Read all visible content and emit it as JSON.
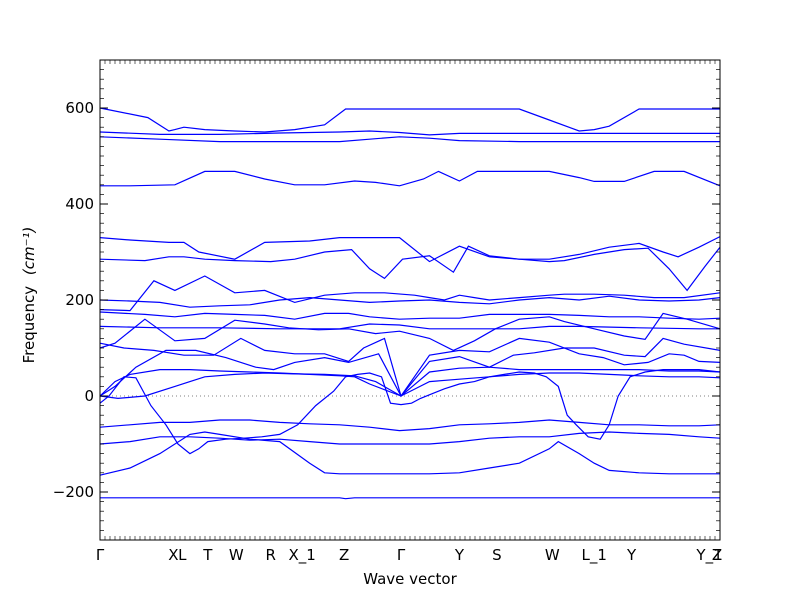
{
  "chart_data": {
    "type": "line",
    "title": "",
    "xlabel": "Wave vector",
    "ylabel": "Frequency",
    "ylabel_unit": "(cm⁻¹)",
    "ylim": [
      -300,
      700
    ],
    "xlim": [
      0,
      20.7
    ],
    "yticks": [
      600,
      400,
      200,
      0,
      -200
    ],
    "ytick_labels": [
      "600",
      "400",
      "200",
      "0",
      "−200"
    ],
    "xticks": [
      {
        "label": "Γ",
        "x": 0
      },
      {
        "label": "X",
        "x": 2.45
      },
      {
        "label": "L",
        "x": 2.75
      },
      {
        "label": "T",
        "x": 3.6
      },
      {
        "label": "W",
        "x": 4.55
      },
      {
        "label": "R",
        "x": 5.7
      },
      {
        "label": "X_1",
        "x": 6.75
      },
      {
        "label": "Z",
        "x": 8.15
      },
      {
        "label": "Γ",
        "x": 10.05
      },
      {
        "label": "Y",
        "x": 12.0
      },
      {
        "label": "S",
        "x": 13.25
      },
      {
        "label": "W",
        "x": 15.1
      },
      {
        "label": "L_1",
        "x": 16.5
      },
      {
        "label": "Y",
        "x": 17.75
      },
      {
        "label": "Y_1",
        "x": 20.35
      },
      {
        "label": "Z",
        "x": 20.6
      }
    ],
    "zero_line": true,
    "series": [
      {
        "x": [
          0,
          1.6,
          2.3,
          2.5,
          2.8,
          3.5,
          4.5,
          5.5,
          6.5,
          7.5,
          8.2,
          9,
          10,
          11,
          12,
          13,
          14,
          15,
          16,
          16.5,
          17,
          18,
          19,
          20,
          20.7
        ],
        "y": [
          600,
          580,
          552,
          555,
          560,
          555,
          552,
          550,
          555,
          565,
          598,
          598,
          598,
          598,
          598,
          598,
          598,
          575,
          552,
          555,
          562,
          598,
          598,
          598,
          598
        ]
      },
      {
        "x": [
          0,
          2,
          4,
          6,
          8,
          9,
          10,
          11,
          12,
          14,
          16,
          18,
          20,
          20.7
        ],
        "y": [
          550,
          545,
          545,
          548,
          550,
          552,
          549,
          544,
          547,
          547,
          547,
          547,
          547,
          547
        ]
      },
      {
        "x": [
          0,
          2,
          4,
          6,
          8,
          9,
          10,
          11,
          12,
          14,
          16,
          18,
          20,
          20.7
        ],
        "y": [
          540,
          535,
          530,
          530,
          530,
          535,
          540,
          537,
          532,
          530,
          530,
          530,
          530,
          530
        ]
      },
      {
        "x": [
          0,
          1,
          2.5,
          3.5,
          4.5,
          5.5,
          6.5,
          7.5,
          8.5,
          9.2,
          10,
          10.8,
          11.3,
          12,
          12.6,
          13.2,
          14,
          15,
          16,
          16.5,
          17.5,
          18.5,
          19.5,
          20.7
        ],
        "y": [
          438,
          438,
          440,
          468,
          468,
          452,
          440,
          440,
          448,
          445,
          438,
          452,
          468,
          448,
          468,
          468,
          468,
          468,
          455,
          447,
          447,
          468,
          468,
          438
        ]
      },
      {
        "x": [
          0,
          1,
          2.3,
          2.8,
          3.3,
          4.5,
          5.5,
          7,
          8,
          9,
          10,
          11,
          12,
          13,
          14,
          15,
          16,
          17,
          18,
          18.8,
          19.3,
          20,
          20.7
        ],
        "y": [
          330,
          325,
          320,
          320,
          300,
          285,
          320,
          323,
          330,
          330,
          330,
          280,
          312,
          290,
          285,
          285,
          295,
          310,
          318,
          300,
          290,
          310,
          332
        ]
      },
      {
        "x": [
          0,
          1.5,
          2.3,
          2.8,
          3.5,
          4.5,
          5.7,
          6.5,
          7.5,
          8.4,
          9,
          9.5,
          10.1,
          11,
          11.8,
          12.3,
          13,
          14,
          15,
          15.5,
          16.5,
          17.5,
          18.3,
          19,
          19.6,
          20.2,
          20.7
        ],
        "y": [
          285,
          282,
          290,
          290,
          285,
          282,
          280,
          285,
          300,
          305,
          265,
          245,
          285,
          292,
          258,
          312,
          292,
          285,
          280,
          282,
          295,
          305,
          308,
          265,
          220,
          270,
          310
        ]
      },
      {
        "x": [
          0,
          1,
          1.8,
          2.5,
          3.5,
          4.5,
          5.5,
          6.5,
          7.5,
          8.5,
          9.5,
          10.5,
          11,
          11.5,
          12,
          12.5,
          13,
          14,
          15,
          15.5,
          16.5,
          17.5,
          18.5,
          19.5,
          20.7
        ],
        "y": [
          180,
          178,
          240,
          220,
          250,
          215,
          220,
          195,
          210,
          215,
          215,
          210,
          205,
          200,
          210,
          205,
          200,
          205,
          210,
          212,
          212,
          210,
          205,
          205,
          215
        ]
      },
      {
        "x": [
          0,
          1,
          2,
          3,
          4,
          5,
          6,
          7,
          8,
          9,
          10,
          11,
          12,
          13,
          14,
          15,
          16,
          17,
          18,
          19,
          20,
          20.7
        ],
        "y": [
          200,
          198,
          195,
          185,
          188,
          190,
          200,
          205,
          200,
          195,
          198,
          200,
          195,
          192,
          200,
          205,
          200,
          208,
          200,
          198,
          200,
          205
        ]
      },
      {
        "x": [
          0,
          1.5,
          2.5,
          3.5,
          4.5,
          5.5,
          6.5,
          7.5,
          8.3,
          9,
          10,
          11,
          12,
          13,
          14,
          15,
          16,
          17,
          18,
          19,
          20,
          20.7
        ],
        "y": [
          175,
          170,
          165,
          172,
          170,
          168,
          160,
          172,
          172,
          165,
          160,
          162,
          162,
          170,
          170,
          170,
          168,
          165,
          165,
          162,
          160,
          162
        ]
      },
      {
        "x": [
          0,
          2,
          4,
          6,
          8,
          9,
          10,
          11,
          12,
          14,
          15,
          16,
          18,
          20,
          20.7
        ],
        "y": [
          145,
          142,
          142,
          140,
          140,
          150,
          148,
          140,
          140,
          140,
          145,
          145,
          142,
          140,
          140
        ]
      },
      {
        "x": [
          0,
          0.5,
          1.5,
          2.5,
          3.5,
          4.5,
          5.5,
          6.3,
          7.3,
          8.3,
          9.2,
          10,
          11,
          11.8,
          12.5,
          13.2,
          14,
          15,
          15.5,
          16.5,
          17.5,
          18.2,
          18.8,
          19.6,
          20.7
        ],
        "y": [
          100,
          110,
          160,
          115,
          120,
          158,
          150,
          142,
          138,
          140,
          130,
          135,
          120,
          95,
          115,
          140,
          160,
          165,
          155,
          140,
          125,
          118,
          172,
          160,
          140
        ]
      },
      {
        "x": [
          0,
          0.8,
          1.8,
          2.8,
          3.8,
          4.7,
          5.5,
          6.5,
          7.5,
          8.3,
          8.8,
          9.5,
          10.05,
          11,
          12,
          13,
          13.8,
          14.5,
          15.5,
          16.5,
          17.5,
          18.2,
          18.8,
          19.5,
          20.7
        ],
        "y": [
          110,
          100,
          95,
          85,
          85,
          120,
          95,
          88,
          88,
          72,
          100,
          120,
          0,
          72,
          82,
          60,
          85,
          90,
          100,
          100,
          85,
          82,
          120,
          108,
          95
        ]
      },
      {
        "x": [
          0,
          0.5,
          1.2,
          2.2,
          3.2,
          4.2,
          5.2,
          5.8,
          6.5,
          7.5,
          8.3,
          9.3,
          10.05,
          11,
          12,
          13,
          14,
          15,
          16,
          16.8,
          17.5,
          18.3,
          19,
          19.5,
          20,
          20.7
        ],
        "y": [
          0,
          20,
          60,
          95,
          95,
          80,
          60,
          55,
          70,
          80,
          70,
          88,
          0,
          85,
          95,
          92,
          120,
          112,
          88,
          80,
          65,
          70,
          88,
          85,
          72,
          70
        ]
      },
      {
        "x": [
          0,
          0.5,
          1,
          2,
          3,
          4,
          5,
          6,
          7,
          8,
          8.5,
          9,
          10.05,
          11,
          12,
          13,
          14,
          15,
          16,
          17,
          18,
          19,
          20,
          20.7
        ],
        "y": [
          0,
          30,
          45,
          55,
          55,
          52,
          50,
          48,
          45,
          42,
          40,
          25,
          0,
          50,
          58,
          60,
          55,
          55,
          55,
          55,
          55,
          52,
          52,
          50
        ]
      },
      {
        "x": [
          0,
          0.6,
          1.5,
          2.5,
          3.5,
          4.5,
          5.5,
          6.5,
          7.5,
          8.5,
          9.2,
          10.05,
          11,
          12,
          13,
          14,
          15,
          16,
          17,
          18,
          19,
          20,
          20.7
        ],
        "y": [
          0,
          -5,
          0,
          20,
          40,
          45,
          48,
          46,
          45,
          42,
          30,
          0,
          30,
          35,
          40,
          45,
          48,
          48,
          45,
          42,
          40,
          40,
          38
        ]
      },
      {
        "x": [
          0,
          0.3,
          0.8,
          1.2,
          1.7,
          2.2,
          2.6,
          3.0,
          3.3,
          3.6,
          4.2,
          4.8,
          5.4,
          6,
          6.6,
          7.2,
          7.8,
          8.2,
          8.6,
          9.0,
          9.4,
          9.7,
          10.05,
          10.4,
          10.7,
          11.1,
          11.5,
          12,
          12.5,
          13,
          13.5,
          14,
          14.5,
          14.9,
          15.3,
          15.6,
          15.9,
          16.3,
          16.7,
          17.0,
          17.3,
          17.7,
          18.2,
          18.8,
          19.4,
          20,
          20.7
        ],
        "y": [
          -15,
          0,
          40,
          38,
          -20,
          -60,
          -100,
          -120,
          -110,
          -95,
          -90,
          -88,
          -85,
          -80,
          -60,
          -20,
          10,
          40,
          45,
          48,
          40,
          -15,
          -18,
          -15,
          -5,
          5,
          15,
          25,
          30,
          40,
          45,
          50,
          48,
          40,
          20,
          -40,
          -60,
          -85,
          -90,
          -60,
          0,
          40,
          50,
          55,
          55,
          55,
          50
        ]
      },
      {
        "x": [
          0,
          1,
          2,
          3,
          3.5,
          4,
          5,
          6,
          7,
          7.5,
          8,
          9,
          10,
          11,
          12,
          13,
          14,
          15,
          15.3,
          16,
          16.5,
          17,
          18,
          19,
          20,
          20.7
        ],
        "y": [
          -165,
          -150,
          -120,
          -80,
          -75,
          -80,
          -90,
          -95,
          -140,
          -160,
          -162,
          -162,
          -162,
          -162,
          -160,
          -150,
          -140,
          -110,
          -95,
          -120,
          -140,
          -155,
          -160,
          -162,
          -162,
          -162
        ]
      },
      {
        "x": [
          0,
          1,
          2,
          3,
          4,
          5,
          6,
          7,
          8,
          9,
          10,
          11,
          12,
          13,
          14,
          15,
          16,
          17,
          18,
          19,
          20,
          20.7
        ],
        "y": [
          -100,
          -95,
          -85,
          -85,
          -88,
          -92,
          -90,
          -95,
          -100,
          -100,
          -100,
          -100,
          -95,
          -88,
          -85,
          -85,
          -78,
          -75,
          -78,
          -80,
          -85,
          -88
        ]
      },
      {
        "x": [
          0,
          1,
          2,
          3,
          4,
          5,
          6,
          7,
          8,
          9,
          10,
          11,
          12,
          13,
          14,
          15,
          16,
          17,
          18,
          19,
          20,
          20.7
        ],
        "y": [
          -65,
          -60,
          -55,
          -55,
          -50,
          -50,
          -55,
          -58,
          -60,
          -65,
          -72,
          -68,
          -60,
          -58,
          -55,
          -50,
          -55,
          -60,
          -60,
          -62,
          -62,
          -60
        ]
      },
      {
        "x": [
          0,
          2,
          4,
          6,
          8,
          8.2,
          8.5,
          10,
          12,
          14,
          16,
          18,
          20,
          20.7
        ],
        "y": [
          -212,
          -212,
          -212,
          -212,
          -212,
          -214,
          -212,
          -212,
          -212,
          -212,
          -212,
          -212,
          -212,
          -212
        ]
      }
    ]
  }
}
